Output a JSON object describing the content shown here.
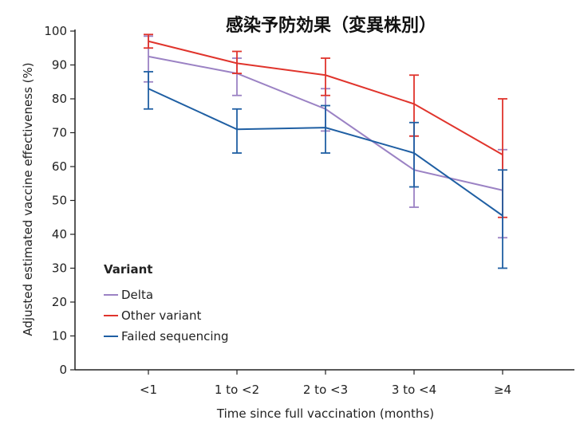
{
  "chart_data": {
    "type": "line",
    "title": "感染予防効果（変異株別）",
    "xlabel": "Time since full vaccination (months)",
    "ylabel": "Adjusted estimated vaccine effectiveness (%)",
    "categories": [
      "<1",
      "1 to <2",
      "2 to <3",
      "3 to <4",
      "≥4"
    ],
    "ylim": [
      0,
      100
    ],
    "yticks": [
      0,
      10,
      20,
      30,
      40,
      50,
      60,
      70,
      80,
      90,
      100
    ],
    "grid": false,
    "legend": {
      "title": "Variant",
      "position": "bottom-left"
    },
    "series": [
      {
        "name": "Delta",
        "color": "#9b82c4",
        "values": [
          92.5,
          87.5,
          77,
          59,
          53
        ],
        "ci_lower": [
          85,
          81,
          70.5,
          48,
          39
        ],
        "ci_upper": [
          98.5,
          92,
          83,
          69,
          65
        ]
      },
      {
        "name": "Other variant",
        "color": "#e0342c",
        "values": [
          97,
          90.5,
          87,
          78.5,
          63.5
        ],
        "ci_lower": [
          95,
          87.5,
          81,
          69,
          45
        ],
        "ci_upper": [
          99,
          94,
          92,
          87,
          80
        ]
      },
      {
        "name": "Failed sequencing",
        "color": "#1f5fa3",
        "values": [
          83,
          71,
          71.5,
          64,
          45.5
        ],
        "ci_lower": [
          77,
          64,
          64,
          54,
          30
        ],
        "ci_upper": [
          88,
          77,
          78,
          73,
          59
        ]
      }
    ]
  }
}
